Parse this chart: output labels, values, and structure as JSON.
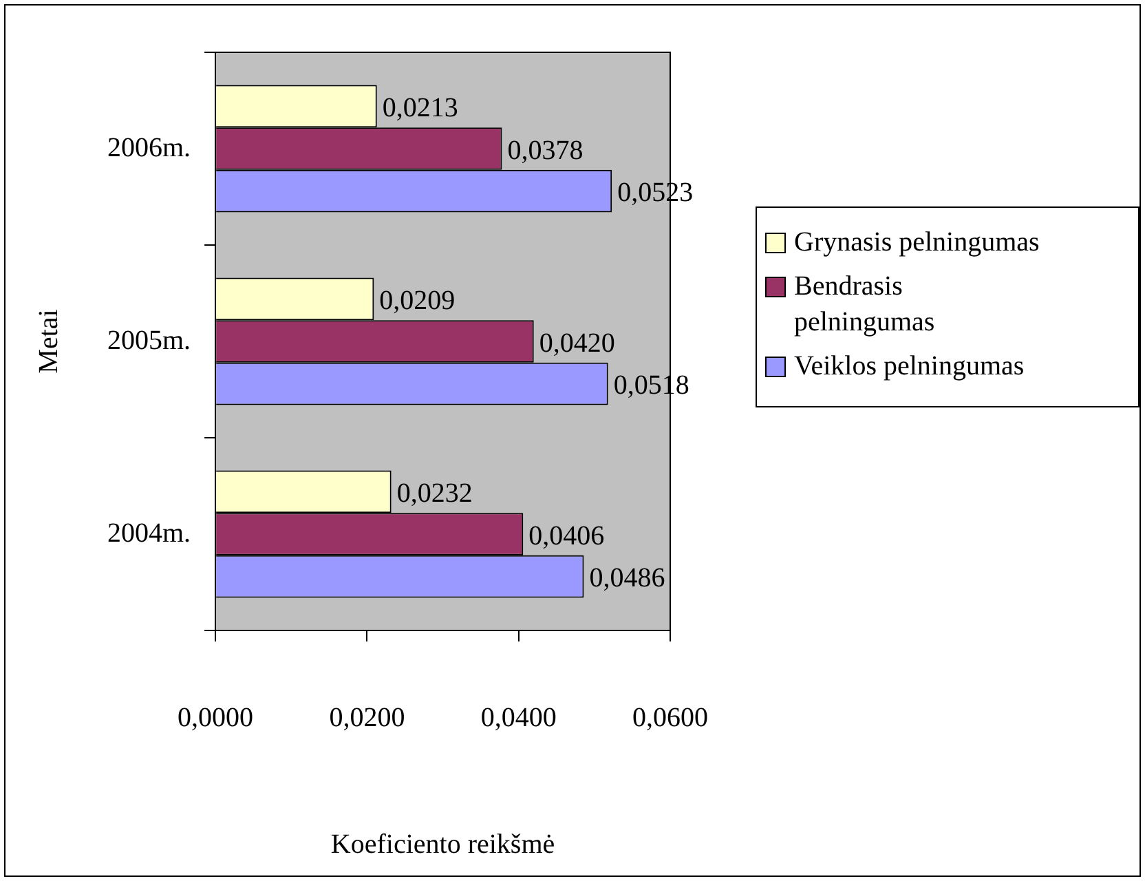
{
  "chart_data": {
    "type": "bar",
    "orientation": "horizontal",
    "xlabel": "Koeficiento reikšmė",
    "ylabel": "Metai",
    "categories": [
      "2006m.",
      "2005m.",
      "2004m."
    ],
    "series": [
      {
        "name": "Grynasis pelningumas",
        "color": "#ffffcc",
        "values": [
          0.0213,
          0.0209,
          0.0232
        ],
        "value_labels": [
          "0,0213",
          "0,0209",
          "0,0232"
        ]
      },
      {
        "name": "Bendrasis pelningumas",
        "color": "#993366",
        "values": [
          0.0378,
          0.042,
          0.0406
        ],
        "value_labels": [
          "0,0378",
          "0,0420",
          "0,0406"
        ]
      },
      {
        "name": "Veiklos pelningumas",
        "color": "#9999ff",
        "values": [
          0.0523,
          0.0518,
          0.0486
        ],
        "value_labels": [
          "0,0523",
          "0,0518",
          "0,0486"
        ]
      }
    ],
    "xlim": [
      0,
      0.06
    ],
    "xticks": [
      {
        "value": 0,
        "label": "0,0000"
      },
      {
        "value": 0.02,
        "label": "0,0200"
      },
      {
        "value": 0.04,
        "label": "0,0400"
      },
      {
        "value": 0.06,
        "label": "0,0600"
      }
    ],
    "grid": false,
    "legend": "right"
  }
}
